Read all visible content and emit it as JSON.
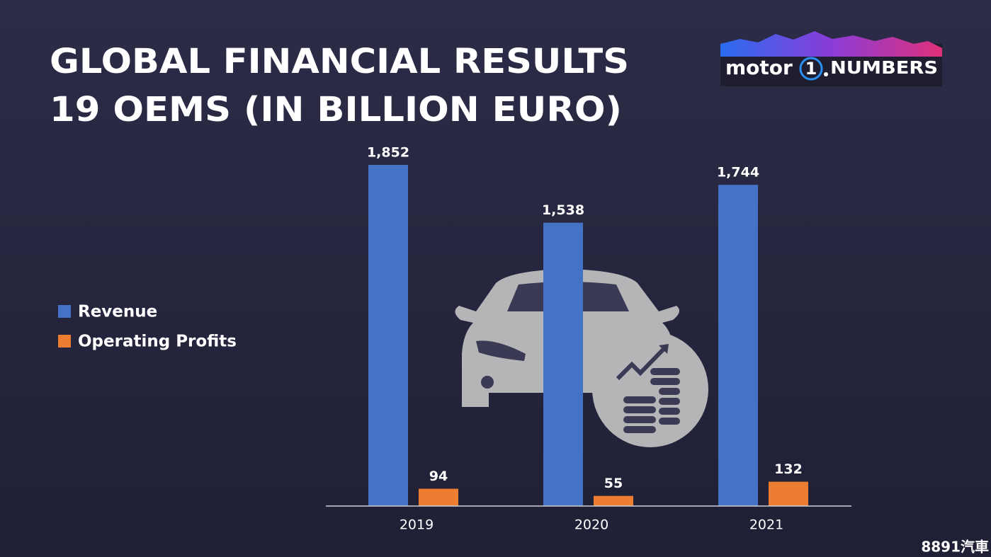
{
  "chart_data": {
    "type": "bar",
    "title": "GLOBAL FINANCIAL RESULTS",
    "subtitle": "19 OEMS (IN BILLION EURO)",
    "categories": [
      "2019",
      "2020",
      "2021"
    ],
    "series": [
      {
        "name": "Revenue",
        "color": "#4472c4",
        "values": [
          1852,
          1538,
          1744
        ],
        "value_labels": [
          "1,852",
          "1,538",
          "1,744"
        ]
      },
      {
        "name": "Operating Profits",
        "color": "#ed7d31",
        "values": [
          94,
          55,
          132
        ]
      }
    ],
    "legend": "left"
  },
  "logo": {
    "word": "motor",
    "number": "1",
    "suffix": "NUMBERS"
  },
  "watermark": "8891汽車"
}
